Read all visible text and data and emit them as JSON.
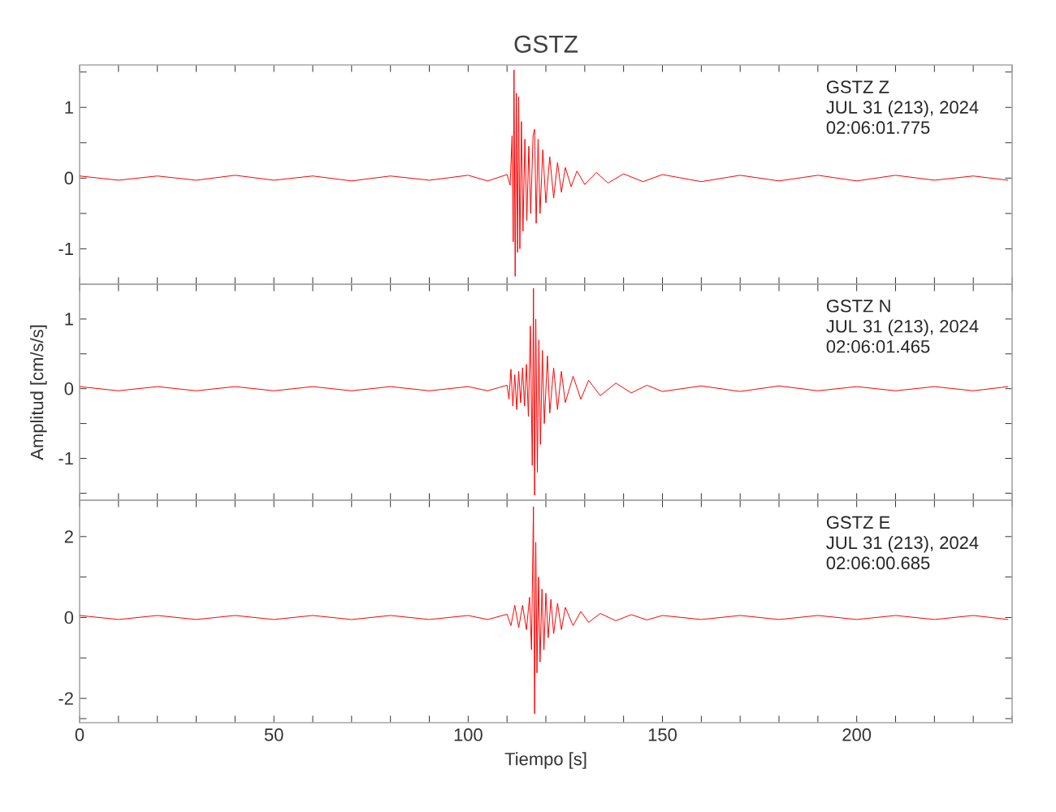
{
  "chart_data": [
    {
      "type": "line",
      "title": "GSTZ",
      "annotations": [
        "GSTZ   Z",
        "JUL 31 (213), 2024",
        "02:06:01.775"
      ],
      "color": "#ff0000",
      "xlim": [
        0,
        240
      ],
      "ylim": [
        -1.5,
        1.6
      ],
      "tick_labels": "y",
      "xticks": [
        {
          "value": 0,
          "label": null
        },
        {
          "value": 10,
          "label": null
        },
        {
          "value": 20,
          "label": null
        },
        {
          "value": 30,
          "label": null
        },
        {
          "value": 40,
          "label": null
        },
        {
          "value": 50,
          "label": null
        },
        {
          "value": 60,
          "label": null
        },
        {
          "value": 70,
          "label": null
        },
        {
          "value": 80,
          "label": null
        },
        {
          "value": 90,
          "label": null
        },
        {
          "value": 100,
          "label": null
        },
        {
          "value": 110,
          "label": null
        },
        {
          "value": 120,
          "label": null
        },
        {
          "value": 130,
          "label": null
        },
        {
          "value": 140,
          "label": null
        },
        {
          "value": 150,
          "label": null
        },
        {
          "value": 160,
          "label": null
        },
        {
          "value": 170,
          "label": null
        },
        {
          "value": 180,
          "label": null
        },
        {
          "value": 190,
          "label": null
        },
        {
          "value": 200,
          "label": null
        },
        {
          "value": 210,
          "label": null
        },
        {
          "value": 220,
          "label": null
        },
        {
          "value": 230,
          "label": null
        },
        {
          "value": 240,
          "label": null
        }
      ],
      "yticks": [
        {
          "value": -1.5,
          "label": null
        },
        -1,
        {
          "value": -0.5,
          "label": null
        },
        0,
        {
          "value": 0.5,
          "label": null
        },
        1,
        {
          "value": 1.5,
          "label": null
        }
      ],
      "x": [
        0,
        10,
        20,
        30,
        40,
        50,
        60,
        70,
        80,
        90,
        100,
        105,
        110,
        110.8,
        111.3,
        111.6,
        111.8,
        112.1,
        112.4,
        112.7,
        113.0,
        113.3,
        113.7,
        114.1,
        114.6,
        115.1,
        115.6,
        116.1,
        116.7,
        117.1,
        117.5,
        118.0,
        118.5,
        119.2,
        120.0,
        121,
        122,
        123,
        124,
        125,
        126.5,
        128,
        130,
        133,
        136,
        140,
        145,
        150,
        160,
        170,
        180,
        190,
        200,
        210,
        220,
        230,
        239
      ],
      "values": [
        0.03,
        -0.03,
        0.03,
        -0.03,
        0.04,
        -0.03,
        0.03,
        -0.04,
        0.03,
        -0.03,
        0.04,
        -0.04,
        0.05,
        -0.1,
        0.6,
        -0.9,
        1.53,
        -1.39,
        1.2,
        -1.05,
        1.15,
        -1.0,
        0.8,
        -0.75,
        0.55,
        -0.6,
        0.45,
        -0.5,
        0.6,
        0.69,
        -0.64,
        0.55,
        -0.5,
        0.4,
        -0.35,
        0.3,
        -0.28,
        0.22,
        -0.2,
        0.15,
        -0.12,
        0.1,
        -0.09,
        0.08,
        -0.07,
        0.06,
        -0.05,
        0.05,
        -0.05,
        0.04,
        -0.04,
        0.04,
        -0.04,
        0.04,
        -0.03,
        0.03,
        -0.03
      ]
    },
    {
      "type": "line",
      "ylabel": "Amplitud [cm/s/s]",
      "annotations": [
        "GSTZ   N",
        "JUL 31 (213), 2024",
        "02:06:01.465"
      ],
      "color": "#ff0000",
      "xlim": [
        0,
        240
      ],
      "ylim": [
        -1.6,
        1.5
      ],
      "tick_labels": "y",
      "xticks": [
        {
          "value": 0,
          "label": null
        },
        {
          "value": 10,
          "label": null
        },
        {
          "value": 20,
          "label": null
        },
        {
          "value": 30,
          "label": null
        },
        {
          "value": 40,
          "label": null
        },
        {
          "value": 50,
          "label": null
        },
        {
          "value": 60,
          "label": null
        },
        {
          "value": 70,
          "label": null
        },
        {
          "value": 80,
          "label": null
        },
        {
          "value": 90,
          "label": null
        },
        {
          "value": 100,
          "label": null
        },
        {
          "value": 110,
          "label": null
        },
        {
          "value": 120,
          "label": null
        },
        {
          "value": 130,
          "label": null
        },
        {
          "value": 140,
          "label": null
        },
        {
          "value": 150,
          "label": null
        },
        {
          "value": 160,
          "label": null
        },
        {
          "value": 170,
          "label": null
        },
        {
          "value": 180,
          "label": null
        },
        {
          "value": 190,
          "label": null
        },
        {
          "value": 200,
          "label": null
        },
        {
          "value": 210,
          "label": null
        },
        {
          "value": 220,
          "label": null
        },
        {
          "value": 230,
          "label": null
        },
        {
          "value": 240,
          "label": null
        }
      ],
      "yticks": [
        {
          "value": -1.5,
          "label": null
        },
        -1,
        {
          "value": -0.5,
          "label": null
        },
        0,
        {
          "value": 0.5,
          "label": null
        },
        1
      ],
      "x": [
        0,
        10,
        20,
        30,
        40,
        50,
        60,
        70,
        80,
        90,
        100,
        105,
        110,
        110.5,
        111,
        111.5,
        112,
        112.5,
        113,
        113.5,
        114,
        114.5,
        115,
        115.5,
        116,
        116.5,
        116.8,
        117.1,
        117.4,
        117.8,
        118.2,
        118.6,
        119.1,
        119.6,
        120.4,
        121,
        122,
        123,
        124,
        125,
        127,
        129,
        131,
        134,
        138,
        142,
        146,
        150,
        160,
        170,
        180,
        190,
        200,
        210,
        220,
        230,
        239
      ],
      "values": [
        0.03,
        -0.03,
        0.03,
        -0.03,
        0.03,
        -0.03,
        0.03,
        -0.03,
        0.03,
        -0.03,
        0.03,
        -0.03,
        0.05,
        -0.15,
        0.28,
        -0.25,
        0.2,
        -0.3,
        0.25,
        -0.2,
        0.3,
        -0.25,
        0.35,
        -0.4,
        0.9,
        -1.1,
        1.44,
        -1.53,
        1.0,
        -1.2,
        0.7,
        -0.8,
        0.55,
        -0.5,
        0.47,
        -0.35,
        0.3,
        -0.3,
        0.25,
        -0.2,
        0.18,
        -0.15,
        0.12,
        -0.1,
        0.08,
        -0.06,
        0.05,
        -0.04,
        0.04,
        -0.04,
        0.04,
        -0.03,
        0.03,
        -0.03,
        0.03,
        -0.03,
        0.03
      ]
    },
    {
      "type": "line",
      "xlabel": "Tiempo [s]",
      "annotations": [
        "GSTZ   E",
        "JUL 31 (213), 2024",
        "02:06:00.685"
      ],
      "color": "#ff0000",
      "xlim": [
        0,
        240
      ],
      "ylim": [
        -2.6,
        2.9
      ],
      "xticks": [
        0,
        {
          "value": 10,
          "label": null
        },
        {
          "value": 20,
          "label": null
        },
        {
          "value": 30,
          "label": null
        },
        {
          "value": 40,
          "label": null
        },
        50,
        {
          "value": 60,
          "label": null
        },
        {
          "value": 70,
          "label": null
        },
        {
          "value": 80,
          "label": null
        },
        {
          "value": 90,
          "label": null
        },
        100,
        {
          "value": 110,
          "label": null
        },
        {
          "value": 120,
          "label": null
        },
        {
          "value": 130,
          "label": null
        },
        {
          "value": 140,
          "label": null
        },
        150,
        {
          "value": 160,
          "label": null
        },
        {
          "value": 170,
          "label": null
        },
        {
          "value": 180,
          "label": null
        },
        {
          "value": 190,
          "label": null
        },
        200,
        {
          "value": 210,
          "label": null
        },
        {
          "value": 220,
          "label": null
        },
        {
          "value": 230,
          "label": null
        },
        {
          "value": 240,
          "label": null
        }
      ],
      "yticks": [
        {
          "value": -2.5,
          "label": null
        },
        -2,
        {
          "value": -1,
          "label": null
        },
        0,
        {
          "value": 1,
          "label": null
        },
        2
      ],
      "x": [
        0,
        10,
        20,
        30,
        40,
        50,
        60,
        70,
        80,
        90,
        100,
        105,
        110,
        111,
        112,
        113,
        114,
        115,
        115.8,
        116.3,
        116.8,
        117.1,
        117.4,
        117.7,
        118.1,
        118.5,
        119,
        119.5,
        120,
        120.6,
        121.3,
        122,
        123,
        124,
        125,
        127,
        129,
        131,
        134,
        138,
        142,
        146,
        150,
        160,
        170,
        180,
        190,
        200,
        210,
        220,
        230,
        239
      ],
      "values": [
        0.05,
        -0.05,
        0.05,
        -0.05,
        0.05,
        -0.05,
        0.05,
        -0.05,
        0.05,
        -0.05,
        0.05,
        -0.05,
        0.08,
        -0.2,
        0.3,
        -0.25,
        0.3,
        -0.3,
        0.5,
        -0.8,
        2.74,
        -2.38,
        1.86,
        -1.37,
        1.0,
        -1.1,
        0.7,
        -0.8,
        0.6,
        -0.5,
        0.45,
        -0.4,
        0.35,
        -0.3,
        0.25,
        -0.2,
        0.15,
        -0.12,
        0.1,
        -0.08,
        0.07,
        -0.06,
        0.05,
        -0.05,
        0.05,
        -0.05,
        0.05,
        -0.05,
        0.05,
        -0.05,
        0.05,
        -0.05
      ]
    }
  ]
}
